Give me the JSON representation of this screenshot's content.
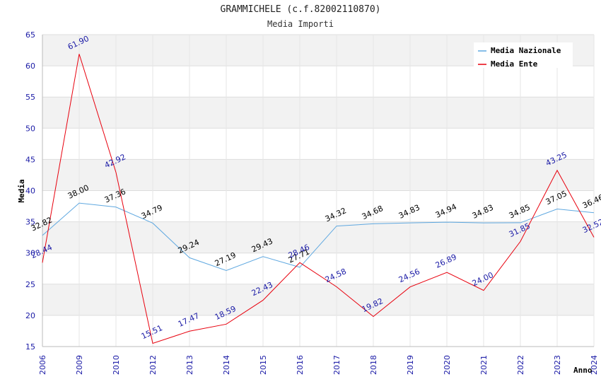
{
  "chart_data": {
    "type": "line",
    "title": "GRAMMICHELE (c.f.82002110870)",
    "subtitle": "Media Importi",
    "xlabel": "Anno",
    "ylabel": "Media",
    "ylim": [
      15,
      65
    ],
    "yticks": [
      15,
      20,
      25,
      30,
      35,
      40,
      45,
      50,
      55,
      60,
      65
    ],
    "categories": [
      "2006",
      "2009",
      "2010",
      "2012",
      "2013",
      "2014",
      "2015",
      "2016",
      "2017",
      "2018",
      "2019",
      "2020",
      "2021",
      "2022",
      "2023",
      "2024"
    ],
    "grid": true,
    "legend_position": "top-right",
    "series": [
      {
        "name": "Media Nazionale",
        "color": "#5fa8e0",
        "label_color": "#000000",
        "values": [
          32.82,
          38.0,
          37.36,
          34.79,
          29.24,
          27.19,
          29.43,
          27.71,
          34.32,
          34.68,
          34.83,
          34.94,
          34.83,
          34.85,
          37.05,
          36.46
        ],
        "labels": [
          "32.82",
          "38.00",
          "37.36",
          "34.79",
          "29.24",
          "27.19",
          "29.43",
          "27.71",
          "34.32",
          "34.68",
          "34.83",
          "34.94",
          "34.83",
          "34.85",
          "37.05",
          "36.46"
        ]
      },
      {
        "name": "Media Ente",
        "color": "#e8000d",
        "label_color": "#1a1aa6",
        "values": [
          28.44,
          61.9,
          42.92,
          15.51,
          17.47,
          18.59,
          22.43,
          28.46,
          24.58,
          19.82,
          24.56,
          26.89,
          24.0,
          31.85,
          43.25,
          32.52
        ],
        "labels": [
          "28.44",
          "61.90",
          "42.92",
          "15.51",
          "17.47",
          "18.59",
          "22.43",
          "28.46",
          "24.58",
          "19.82",
          "24.56",
          "26.89",
          "24.00",
          "31.85",
          "43.25",
          "32.52"
        ]
      }
    ]
  }
}
